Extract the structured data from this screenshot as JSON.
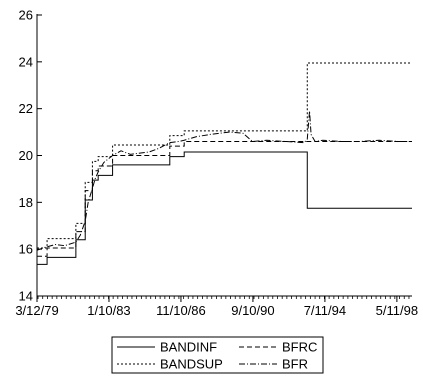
{
  "chart_data": {
    "type": "line",
    "title": "",
    "xlabel": "",
    "ylabel": "",
    "xlim": [
      "1979-03-12",
      "1999-03-01"
    ],
    "ylim": [
      14,
      26
    ],
    "x_ticks": [
      "3/12/79",
      "1/10/83",
      "11/10/86",
      "9/10/90",
      "7/11/94",
      "5/11/98"
    ],
    "x_tick_dates": [
      "1979-03-12",
      "1983-01-10",
      "1986-11-10",
      "1990-09-10",
      "1994-07-11",
      "1998-05-11"
    ],
    "y_ticks": [
      14,
      16,
      18,
      20,
      22,
      24,
      26
    ],
    "grid": false,
    "legend_position": "bottom",
    "series": [
      {
        "name": "BANDINF",
        "style": "solid",
        "x": [
          "1979-03-12",
          "1979-09-24",
          "1979-09-24",
          "1981-04-06",
          "1981-04-06",
          "1981-10-05",
          "1981-10-05",
          "1982-02-22",
          "1982-02-22",
          "1982-06-14",
          "1982-06-14",
          "1983-03-21",
          "1983-03-21",
          "1986-04-07",
          "1986-04-07",
          "1987-01-12",
          "1987-01-12",
          "1993-08-02",
          "1993-08-02",
          "1999-03-01"
        ],
        "y": [
          15.35,
          15.35,
          15.65,
          15.65,
          16.4,
          16.4,
          18.1,
          18.1,
          18.95,
          18.95,
          19.15,
          19.15,
          19.6,
          19.6,
          19.95,
          19.95,
          20.15,
          20.15,
          17.75,
          17.75
        ]
      },
      {
        "name": "BANDSUP",
        "style": "dotted",
        "x": [
          "1979-03-12",
          "1979-09-24",
          "1979-09-24",
          "1981-04-06",
          "1981-04-06",
          "1981-10-05",
          "1981-10-05",
          "1982-02-22",
          "1982-02-22",
          "1982-06-14",
          "1982-06-14",
          "1983-03-21",
          "1983-03-21",
          "1986-04-07",
          "1986-04-07",
          "1987-01-12",
          "1987-01-12",
          "1993-08-02",
          "1993-08-02",
          "1999-03-01"
        ],
        "y": [
          16.05,
          16.05,
          16.45,
          16.45,
          17.1,
          17.1,
          18.85,
          18.85,
          19.75,
          19.75,
          19.95,
          19.95,
          20.45,
          20.45,
          20.85,
          20.85,
          21.05,
          21.05,
          23.95,
          23.95
        ]
      },
      {
        "name": "BFRC",
        "style": "dashed",
        "x": [
          "1979-03-12",
          "1979-09-24",
          "1979-09-24",
          "1981-04-06",
          "1981-04-06",
          "1981-10-05",
          "1981-10-05",
          "1982-02-22",
          "1982-02-22",
          "1982-06-14",
          "1982-06-14",
          "1983-03-21",
          "1983-03-21",
          "1986-04-07",
          "1986-04-07",
          "1987-01-12",
          "1987-01-12",
          "1993-08-02",
          "1993-08-02",
          "1999-03-01"
        ],
        "y": [
          15.7,
          15.7,
          16.05,
          16.05,
          16.75,
          16.75,
          18.5,
          18.5,
          19.35,
          19.35,
          19.55,
          19.55,
          20.0,
          20.0,
          20.4,
          20.4,
          20.6,
          20.6,
          20.6,
          20.6
        ]
      },
      {
        "name": "BFR",
        "style": "dash-dot",
        "x": [
          "1979-03-12",
          "1979-07-01",
          "1979-09-24",
          "1980-03-01",
          "1980-09-01",
          "1981-04-06",
          "1981-07-01",
          "1981-10-05",
          "1981-12-01",
          "1982-02-22",
          "1982-04-15",
          "1982-06-14",
          "1982-10-01",
          "1983-03-21",
          "1983-09-01",
          "1984-03-01",
          "1984-09-01",
          "1985-03-01",
          "1985-09-01",
          "1986-04-07",
          "1986-10-01",
          "1987-01-12",
          "1987-09-01",
          "1988-06-01",
          "1989-06-01",
          "1990-03-01",
          "1990-09-01",
          "1991-06-01",
          "1992-06-01",
          "1993-06-01",
          "1993-08-02",
          "1993-09-15",
          "1993-10-15",
          "1994-01-01",
          "1994-06-01",
          "1995-06-01",
          "1996-06-01",
          "1997-06-01",
          "1998-06-01",
          "1999-03-01"
        ],
        "y": [
          15.95,
          16.05,
          16.1,
          16.2,
          16.15,
          16.3,
          16.6,
          17.2,
          18.0,
          18.6,
          19.0,
          19.3,
          19.7,
          20.0,
          20.2,
          20.05,
          20.1,
          20.15,
          20.3,
          20.55,
          20.6,
          20.65,
          20.8,
          20.9,
          21.0,
          20.95,
          20.6,
          20.65,
          20.6,
          20.55,
          20.7,
          21.9,
          20.9,
          20.6,
          20.65,
          20.6,
          20.6,
          20.65,
          20.6,
          20.6
        ]
      }
    ]
  }
}
